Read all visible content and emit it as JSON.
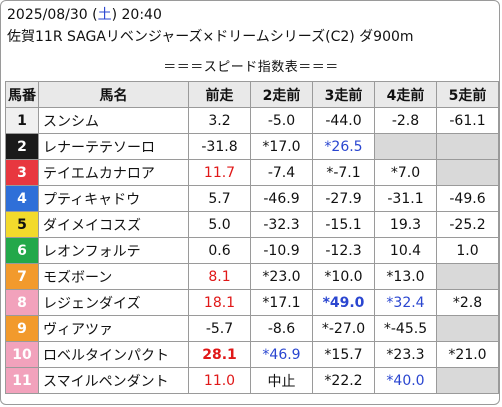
{
  "header": {
    "date_prefix": "2025/08/30 (",
    "weekday": "土",
    "date_suffix": ") 20:40",
    "race": "佐賀11R SAGAリベンジャーズ×ドリームシリーズ(C2) ダ900m"
  },
  "table_title": "＝＝＝スピード指数表＝＝＝",
  "columns": [
    "馬番",
    "馬名",
    "前走",
    "2走前",
    "3走前",
    "4走前",
    "5走前"
  ],
  "colors": {
    "num_bg": [
      "#f0f0f0",
      "#1a1a1a",
      "#e8373f",
      "#2f6fd8",
      "#f3da2c",
      "#23a84a",
      "#f29a2c",
      "#f2a2bc",
      "#f29a2c",
      "#f2a2bc",
      "#f2a2bc"
    ],
    "num_fg": [
      "#111111",
      "#ffffff",
      "#ffffff",
      "#ffffff",
      "#111111",
      "#ffffff",
      "#ffffff",
      "#ffffff",
      "#ffffff",
      "#ffffff",
      "#ffffff"
    ],
    "red": "#e01818",
    "blue": "#2a46d0",
    "empty": "#d9d9d9"
  },
  "rows": [
    {
      "num": "1",
      "name": "スンシム",
      "cells": [
        "3.2",
        "-5.0",
        "-44.0",
        "-2.8",
        "-61.1"
      ]
    },
    {
      "num": "2",
      "name": "レナーテテソーロ",
      "cells": [
        "-31.8",
        "*17.0",
        "*26.5",
        "",
        ""
      ]
    },
    {
      "num": "3",
      "name": "テイエムカナロア",
      "cells": [
        "11.7",
        "-7.4",
        "*-7.1",
        "*7.0",
        ""
      ]
    },
    {
      "num": "4",
      "name": "プティキャドウ",
      "cells": [
        "5.7",
        "-46.9",
        "-27.9",
        "-31.1",
        "-49.6"
      ]
    },
    {
      "num": "5",
      "name": "ダイメイコスズ",
      "cells": [
        "5.0",
        "-32.3",
        "-15.1",
        "19.3",
        "-25.2"
      ]
    },
    {
      "num": "6",
      "name": "レオンフォルテ",
      "cells": [
        "0.6",
        "-10.9",
        "-12.3",
        "10.4",
        "1.0"
      ]
    },
    {
      "num": "7",
      "name": "モズボーン",
      "cells": [
        "8.1",
        "*23.0",
        "*10.0",
        "*13.0",
        ""
      ]
    },
    {
      "num": "8",
      "name": "レジェンダイズ",
      "cells": [
        "18.1",
        "*17.1",
        "*49.0",
        "*32.4",
        "*2.8"
      ]
    },
    {
      "num": "9",
      "name": "ヴィアツァ",
      "cells": [
        "-5.7",
        "-8.6",
        "*-27.0",
        "*-45.5",
        ""
      ]
    },
    {
      "num": "10",
      "name": "ロベルタインパクト",
      "cells": [
        "28.1",
        "*46.9",
        "*15.7",
        "*23.3",
        "*21.0"
      ]
    },
    {
      "num": "11",
      "name": "スマイルペンダント",
      "cells": [
        "11.0",
        "中止",
        "*22.2",
        "*40.0",
        ""
      ]
    }
  ]
}
